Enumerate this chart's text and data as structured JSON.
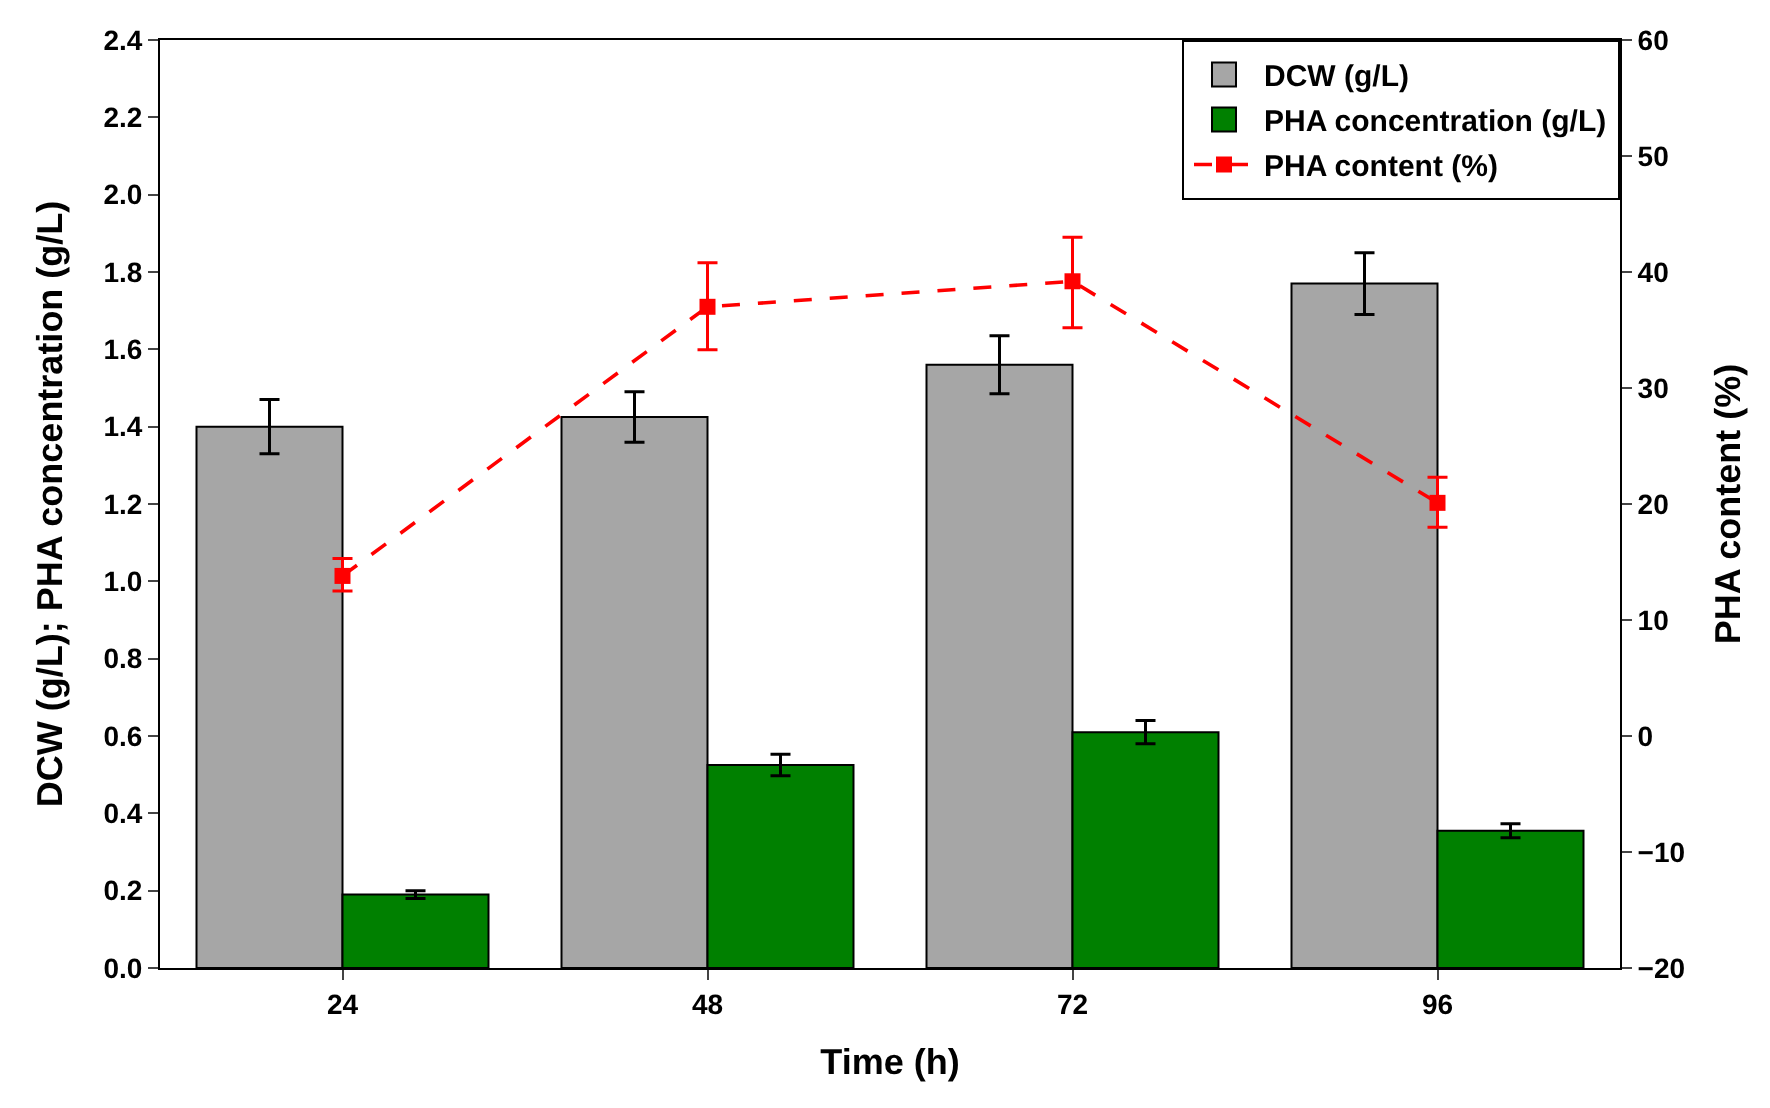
{
  "chart_data": {
    "type": "bar",
    "xlabel": "Time (h)",
    "ylabel": "DCW (g/L); PHA concentration (g/L)",
    "y2label": "PHA content (%)",
    "categories": [
      "24",
      "48",
      "72",
      "96"
    ],
    "series": [
      {
        "name": "DCW (g/L)",
        "color": "#a6a6a6",
        "values": [
          1.4,
          1.425,
          1.56,
          1.77
        ],
        "errors": [
          0.07,
          0.065,
          0.075,
          0.08
        ]
      },
      {
        "name": "PHA concentration (g/L)",
        "color": "#008000",
        "values": [
          0.19,
          0.525,
          0.61,
          0.355
        ],
        "errors": [
          0.01,
          0.028,
          0.03,
          0.018
        ]
      },
      {
        "name": "PHA content (%)",
        "type": "line",
        "axis": "y2",
        "color": "#ff0000",
        "marker": "square",
        "line_style": "dashed",
        "values": [
          13.8,
          37.0,
          39.2,
          20.1
        ],
        "errors": [
          [
            12.5,
            15.3
          ],
          [
            33.3,
            40.8
          ],
          [
            35.2,
            43.0
          ],
          [
            18.0,
            22.3
          ]
        ]
      }
    ],
    "ylim": [
      0,
      2.4
    ],
    "yticks": [
      {
        "value": 0,
        "label": "0.0"
      },
      0.2,
      0.4,
      0.6,
      0.8,
      {
        "value": 1,
        "label": "1.0"
      },
      1.2,
      1.4,
      1.6,
      1.8,
      {
        "value": 2,
        "label": "2.0"
      },
      2.2,
      2.4
    ],
    "y2lim": [
      -20,
      60
    ],
    "y2ticks": [
      -20,
      -10,
      0,
      10,
      20,
      30,
      40,
      50,
      60
    ],
    "legend": "top right"
  }
}
